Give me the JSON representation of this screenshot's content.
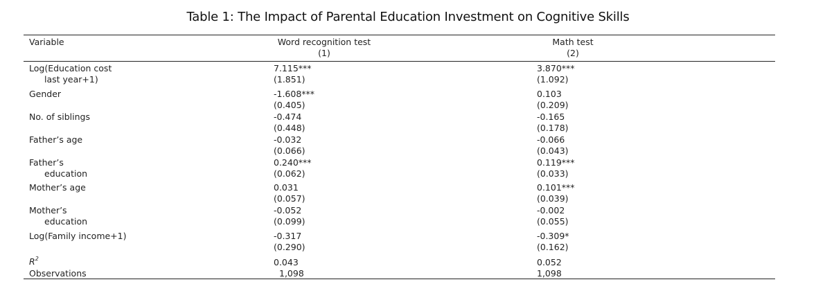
{
  "table": {
    "title": "Table 1: The Impact of Parental Education Investment on Cognitive Skills",
    "header": {
      "variable": "Variable",
      "col1_name": "Word recognition test",
      "col1_num": "(1)",
      "col2_name": "Math test",
      "col2_num": "(2)"
    },
    "rows": [
      {
        "label_line1": "Log(Education cost",
        "label_line2": "last year+1)",
        "c1_coef": "7.115***",
        "c1_se": "(1.851)",
        "c2_coef": "3.870***",
        "c2_se": "(1.092)"
      },
      {
        "label_line1": "Gender",
        "c1_coef": "-1.608***",
        "c1_se": "(0.405)",
        "c2_coef": "0.103",
        "c2_se": "(0.209)"
      },
      {
        "label_line1": "No. of siblings",
        "c1_coef": "-0.474",
        "c1_se": "(0.448)",
        "c2_coef": "-0.165",
        "c2_se": "(0.178)"
      },
      {
        "label_line1": "Father’s age",
        "c1_coef": "-0.032",
        "c1_se": "(0.066)",
        "c2_coef": "-0.066",
        "c2_se": "(0.043)"
      },
      {
        "label_line1": "Father’s",
        "label_line2": "education",
        "c1_coef": "0.240***",
        "c1_se": "(0.062)",
        "c2_coef": "0.119***",
        "c2_se": "(0.033)"
      },
      {
        "label_line1": "Mother’s age",
        "c1_coef": "0.031",
        "c1_se": "(0.057)",
        "c2_coef": "0.101***",
        "c2_se": "(0.039)"
      },
      {
        "label_line1": "Mother’s",
        "label_line2": "education",
        "c1_coef": "-0.052",
        "c1_se": "(0.099)",
        "c2_coef": "-0.002",
        "c2_se": "(0.055)"
      },
      {
        "label_line1": "Log(Family income+1)",
        "c1_coef": "-0.317",
        "c1_se": "(0.290)",
        "c2_coef": "-0.309*",
        "c2_se": "(0.162)"
      }
    ],
    "r2": {
      "label_base": "R",
      "label_sup": "2",
      "c1": "0.043",
      "c2": "0.052"
    },
    "observations": {
      "label": "Observations",
      "c1": "1,098",
      "c2": "1,098"
    }
  }
}
